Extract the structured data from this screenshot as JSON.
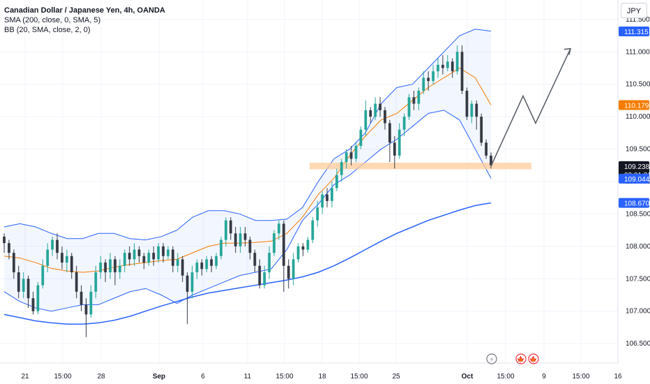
{
  "legend": {
    "title": "Canadian Dollar / Japanese Yen, 4h, OANDA",
    "sma": "SMA (200, close, 0, SMA, 5)",
    "bb": "BB (20, SMA, close, 2, 0)"
  },
  "currency_button": "JPY",
  "colors": {
    "up": "#2a9d8f",
    "down": "#3f3f46",
    "candle_up": "#26a69a",
    "candle_down": "#363a45",
    "band": "#2962ff",
    "basis": "#f57c00",
    "sma": "#2962ff",
    "zone": "#ffcc99",
    "arrow": "#555a64"
  },
  "chart_data": {
    "type": "candlestick",
    "y_ticks": [
      "111.500",
      "111.000",
      "110.500",
      "110.000",
      "109.500",
      "109.000",
      "108.500",
      "108.000",
      "107.500",
      "107.000",
      "106.500"
    ],
    "x_ticks": [
      "21",
      "15:00",
      "28",
      "Sep",
      "6",
      "11",
      "15:00",
      "18",
      "15:00",
      "25",
      "Oct",
      "15:00",
      "9",
      "15:00",
      "16"
    ],
    "ylim": [
      106.2,
      111.8
    ],
    "price_tags": [
      {
        "label": "111.315",
        "value": 111.315,
        "color": "#2962ff"
      },
      {
        "label": "110.179",
        "value": 110.179,
        "color": "#f57c00"
      },
      {
        "label": "109.238",
        "value": 109.238,
        "color": "#131722",
        "sub": "02:01:31"
      },
      {
        "label": "109.044",
        "value": 109.044,
        "color": "#2962ff"
      },
      {
        "label": "108.670",
        "value": 108.67,
        "color": "#2962ff"
      }
    ],
    "sma200": [
      106.95,
      106.9,
      106.85,
      106.82,
      106.8,
      106.8,
      106.82,
      106.86,
      106.92,
      107.0,
      107.08,
      107.15,
      107.22,
      107.28,
      107.32,
      107.36,
      107.4,
      107.44,
      107.48,
      107.53,
      107.6,
      107.7,
      107.82,
      107.95,
      108.08,
      108.2,
      108.3,
      108.4,
      108.48,
      108.56,
      108.63,
      108.67
    ],
    "bb_upper": [
      108.3,
      108.35,
      108.3,
      108.2,
      108.12,
      108.12,
      108.2,
      108.2,
      108.12,
      108.1,
      108.15,
      108.25,
      108.45,
      108.55,
      108.55,
      108.5,
      108.4,
      108.4,
      108.42,
      108.6,
      109.0,
      109.35,
      109.5,
      109.75,
      110.2,
      110.45,
      110.5,
      110.75,
      111.0,
      111.25,
      111.35,
      111.32
    ],
    "bb_basis": [
      107.85,
      107.82,
      107.75,
      107.66,
      107.62,
      107.6,
      107.62,
      107.68,
      107.72,
      107.75,
      107.78,
      107.8,
      107.9,
      108.0,
      108.05,
      108.05,
      108.06,
      108.08,
      108.2,
      108.45,
      108.8,
      109.05,
      109.4,
      109.7,
      109.95,
      110.05,
      110.25,
      110.45,
      110.6,
      110.75,
      110.6,
      110.18
    ],
    "bb_lower": [
      107.3,
      107.15,
      107.05,
      107.0,
      107.05,
      107.1,
      107.1,
      107.2,
      107.3,
      107.35,
      107.25,
      107.12,
      107.25,
      107.35,
      107.45,
      107.55,
      107.6,
      107.65,
      107.95,
      108.4,
      108.65,
      108.95,
      109.1,
      109.3,
      109.5,
      109.65,
      109.85,
      110.05,
      110.1,
      109.95,
      109.5,
      109.05
    ],
    "zone": {
      "y_low": 109.19,
      "y_high": 109.29
    },
    "projection": [
      109.238,
      110.32,
      109.9,
      111.05
    ],
    "candles": [
      [
        108.15,
        108.05,
        108.2,
        107.9
      ],
      [
        108.05,
        107.9,
        108.1,
        107.8
      ],
      [
        107.9,
        107.6,
        107.95,
        107.5
      ],
      [
        107.6,
        107.3,
        107.7,
        107.2
      ],
      [
        107.3,
        107.5,
        107.6,
        107.2
      ],
      [
        107.5,
        107.2,
        107.55,
        107.05
      ],
      [
        107.2,
        107.0,
        107.3,
        106.95
      ],
      [
        107.0,
        107.4,
        107.45,
        106.95
      ],
      [
        107.4,
        107.7,
        107.8,
        107.35
      ],
      [
        107.7,
        107.95,
        108.05,
        107.6
      ],
      [
        107.95,
        108.1,
        108.15,
        107.85
      ],
      [
        108.1,
        107.9,
        108.2,
        107.8
      ],
      [
        107.9,
        107.75,
        108.0,
        107.65
      ],
      [
        107.75,
        107.85,
        107.95,
        107.6
      ],
      [
        107.85,
        107.6,
        107.9,
        107.5
      ],
      [
        107.6,
        107.3,
        107.7,
        107.2
      ],
      [
        107.3,
        107.1,
        107.4,
        107.0
      ],
      [
        107.1,
        106.95,
        107.2,
        106.6
      ],
      [
        106.95,
        107.3,
        107.4,
        106.9
      ],
      [
        107.3,
        107.6,
        107.7,
        107.2
      ],
      [
        107.6,
        107.75,
        107.85,
        107.5
      ],
      [
        107.75,
        107.6,
        107.8,
        107.45
      ],
      [
        107.6,
        107.8,
        107.9,
        107.5
      ],
      [
        107.8,
        107.6,
        107.85,
        107.4
      ],
      [
        107.6,
        107.7,
        107.8,
        107.5
      ],
      [
        107.7,
        107.9,
        107.95,
        107.6
      ],
      [
        107.9,
        107.8,
        108.0,
        107.7
      ],
      [
        107.8,
        107.95,
        108.05,
        107.7
      ],
      [
        107.95,
        107.85,
        108.0,
        107.75
      ],
      [
        107.85,
        107.75,
        107.9,
        107.65
      ],
      [
        107.75,
        107.9,
        107.95,
        107.7
      ],
      [
        107.9,
        107.8,
        108.0,
        107.7
      ],
      [
        107.8,
        108.0,
        108.05,
        107.75
      ],
      [
        108.0,
        107.85,
        108.05,
        107.75
      ],
      [
        107.85,
        107.95,
        108.0,
        107.8
      ],
      [
        107.95,
        107.7,
        108.0,
        107.6
      ],
      [
        107.7,
        107.8,
        107.9,
        107.6
      ],
      [
        107.8,
        107.55,
        107.85,
        107.45
      ],
      [
        107.55,
        107.3,
        107.6,
        106.8
      ],
      [
        107.3,
        107.6,
        107.7,
        107.2
      ],
      [
        107.6,
        107.75,
        107.8,
        107.5
      ],
      [
        107.75,
        107.65,
        107.8,
        107.55
      ],
      [
        107.65,
        107.8,
        107.85,
        107.6
      ],
      [
        107.8,
        107.7,
        107.85,
        107.6
      ],
      [
        107.7,
        107.85,
        107.9,
        107.65
      ],
      [
        107.85,
        108.1,
        108.15,
        107.8
      ],
      [
        108.1,
        108.4,
        108.45,
        108.0
      ],
      [
        108.4,
        108.2,
        108.45,
        108.1
      ],
      [
        108.2,
        108.0,
        108.3,
        107.9
      ],
      [
        108.0,
        108.2,
        108.3,
        107.9
      ],
      [
        108.2,
        108.1,
        108.3,
        108.0
      ],
      [
        108.1,
        107.9,
        108.15,
        107.8
      ],
      [
        107.9,
        107.7,
        107.95,
        107.6
      ],
      [
        107.7,
        107.4,
        107.8,
        107.35
      ],
      [
        107.4,
        107.6,
        107.7,
        107.35
      ],
      [
        107.6,
        107.9,
        108.0,
        107.5
      ],
      [
        107.9,
        108.2,
        108.25,
        107.85
      ],
      [
        108.2,
        108.35,
        108.4,
        108.1
      ],
      [
        108.35,
        107.7,
        108.4,
        107.3
      ],
      [
        107.7,
        107.5,
        107.8,
        107.35
      ],
      [
        107.5,
        107.8,
        107.9,
        107.4
      ],
      [
        107.8,
        108.0,
        108.05,
        107.75
      ],
      [
        108.0,
        107.95,
        108.05,
        107.85
      ],
      [
        107.95,
        108.1,
        108.15,
        107.9
      ],
      [
        108.1,
        108.4,
        108.45,
        108.05
      ],
      [
        108.4,
        108.6,
        108.7,
        108.3
      ],
      [
        108.6,
        108.8,
        108.85,
        108.5
      ],
      [
        108.8,
        108.7,
        108.9,
        108.6
      ],
      [
        108.7,
        108.9,
        109.0,
        108.6
      ],
      [
        108.9,
        109.1,
        109.2,
        108.85
      ],
      [
        109.1,
        109.3,
        109.35,
        109.0
      ],
      [
        109.3,
        109.45,
        109.5,
        109.2
      ],
      [
        109.45,
        109.35,
        109.55,
        109.25
      ],
      [
        109.35,
        109.55,
        109.6,
        109.3
      ],
      [
        109.55,
        109.8,
        109.85,
        109.5
      ],
      [
        109.8,
        110.1,
        110.25,
        109.7
      ],
      [
        110.1,
        110.0,
        110.15,
        109.9
      ],
      [
        110.0,
        110.2,
        110.3,
        109.95
      ],
      [
        110.2,
        110.1,
        110.3,
        110.0
      ],
      [
        110.1,
        109.9,
        110.15,
        109.8
      ],
      [
        109.9,
        109.6,
        109.95,
        109.3
      ],
      [
        109.6,
        109.4,
        109.7,
        109.2
      ],
      [
        109.4,
        109.8,
        109.9,
        109.35
      ],
      [
        109.8,
        110.0,
        110.05,
        109.7
      ],
      [
        110.0,
        110.3,
        110.35,
        109.95
      ],
      [
        110.3,
        110.2,
        110.4,
        110.1
      ],
      [
        110.2,
        110.4,
        110.45,
        110.1
      ],
      [
        110.4,
        110.6,
        110.7,
        110.35
      ],
      [
        110.6,
        110.55,
        110.7,
        110.4
      ],
      [
        110.55,
        110.7,
        110.8,
        110.5
      ],
      [
        110.7,
        110.8,
        110.9,
        110.6
      ],
      [
        110.8,
        110.75,
        110.95,
        110.65
      ],
      [
        110.75,
        110.85,
        110.95,
        110.7
      ],
      [
        110.85,
        110.7,
        110.9,
        110.6
      ],
      [
        110.7,
        111.0,
        111.1,
        110.65
      ],
      [
        111.0,
        110.4,
        111.1,
        110.35
      ],
      [
        110.4,
        110.0,
        110.45,
        109.95
      ],
      [
        110.0,
        110.2,
        110.25,
        109.9
      ],
      [
        110.2,
        110.0,
        110.25,
        109.8
      ],
      [
        110.0,
        109.6,
        110.05,
        109.55
      ],
      [
        109.6,
        109.4,
        109.65,
        109.35
      ],
      [
        109.4,
        109.25,
        109.45,
        109.2
      ]
    ]
  },
  "events": [
    {
      "name": "earnings-icon",
      "glyph": "⚡"
    },
    {
      "name": "ca-flag-icon",
      "glyph": "🍁"
    },
    {
      "name": "ca-flag-icon-2",
      "glyph": "🍁"
    }
  ]
}
